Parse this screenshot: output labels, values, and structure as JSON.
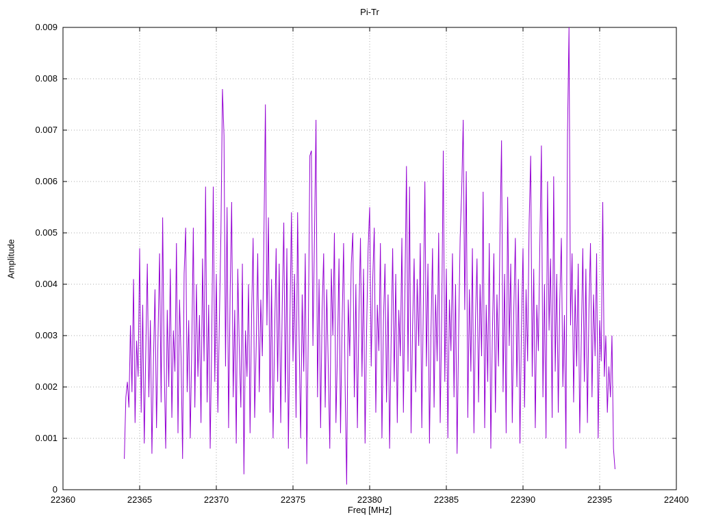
{
  "page": {
    "background": "#ffffff"
  },
  "chart_data": {
    "type": "line",
    "title": "Pi-Tr",
    "xlabel": "Freq [MHz]",
    "ylabel": "Amplitude",
    "xlim": [
      22360,
      22400
    ],
    "ylim": [
      0,
      0.009
    ],
    "grid": true,
    "legend": "none",
    "line_color": "#9400d3",
    "x_ticks": [
      22360,
      22365,
      22370,
      22375,
      22380,
      22385,
      22390,
      22395,
      22400
    ],
    "x_tick_labels": [
      "22360",
      "22365",
      "22370",
      "22375",
      "22380",
      "22385",
      "22390",
      "22395",
      "22400"
    ],
    "y_ticks": [
      0,
      0.001,
      0.002,
      0.003,
      0.004,
      0.005,
      0.006,
      0.007,
      0.008,
      0.009
    ],
    "y_tick_labels": [
      "0",
      "0.001",
      "0.002",
      "0.003",
      "0.004",
      "0.005",
      "0.006",
      "0.007",
      "0.008",
      "0.009"
    ],
    "x_start": 22364.0,
    "x_step": 0.1,
    "values": [
      0.0006,
      0.0018,
      0.0021,
      0.0016,
      0.0032,
      0.0019,
      0.0041,
      0.0013,
      0.0029,
      0.0022,
      0.0047,
      0.0015,
      0.0036,
      0.0009,
      0.0027,
      0.0044,
      0.0018,
      0.0033,
      0.0007,
      0.0025,
      0.0039,
      0.0012,
      0.003,
      0.0046,
      0.0017,
      0.0053,
      0.0024,
      0.0008,
      0.0035,
      0.002,
      0.0043,
      0.0014,
      0.0031,
      0.0023,
      0.0048,
      0.0011,
      0.0037,
      0.0026,
      0.0006,
      0.0042,
      0.0051,
      0.0019,
      0.0033,
      0.001,
      0.0028,
      0.0051,
      0.0016,
      0.004,
      0.0022,
      0.0034,
      0.0013,
      0.0045,
      0.0025,
      0.0059,
      0.0017,
      0.0036,
      0.0008,
      0.0029,
      0.0059,
      0.0021,
      0.0042,
      0.0015,
      0.0033,
      0.005,
      0.0078,
      0.0069,
      0.0024,
      0.0055,
      0.0012,
      0.0038,
      0.0056,
      0.0018,
      0.0035,
      0.0009,
      0.0043,
      0.0027,
      0.0016,
      0.0044,
      0.0003,
      0.0031,
      0.0022,
      0.004,
      0.0011,
      0.0034,
      0.0049,
      0.0014,
      0.0028,
      0.0046,
      0.0019,
      0.0037,
      0.0026,
      0.0048,
      0.0075,
      0.0032,
      0.0053,
      0.0015,
      0.0041,
      0.001,
      0.003,
      0.0047,
      0.0021,
      0.0044,
      0.0013,
      0.0036,
      0.0052,
      0.0017,
      0.0047,
      0.0008,
      0.0033,
      0.0054,
      0.0025,
      0.0042,
      0.0014,
      0.0054,
      0.0029,
      0.001,
      0.0038,
      0.0023,
      0.0046,
      0.0005,
      0.0031,
      0.0065,
      0.0066,
      0.0028,
      0.0049,
      0.0072,
      0.0018,
      0.0041,
      0.0012,
      0.0035,
      0.0046,
      0.0016,
      0.0039,
      0.0024,
      0.0008,
      0.0043,
      0.003,
      0.005,
      0.0013,
      0.0027,
      0.0045,
      0.0011,
      0.0032,
      0.0048,
      0.002,
      0.0001,
      0.0037,
      0.0026,
      0.0044,
      0.005,
      0.0018,
      0.004,
      0.0012,
      0.0034,
      0.0049,
      0.0022,
      0.0043,
      0.0009,
      0.0031,
      0.0047,
      0.0055,
      0.0024,
      0.0041,
      0.0051,
      0.0015,
      0.0036,
      0.0027,
      0.0048,
      0.001,
      0.0033,
      0.0044,
      0.0017,
      0.0038,
      0.0008,
      0.0029,
      0.0047,
      0.0021,
      0.0042,
      0.0013,
      0.0035,
      0.0026,
      0.0049,
      0.0015,
      0.0039,
      0.0063,
      0.0023,
      0.0059,
      0.0011,
      0.0032,
      0.0045,
      0.0019,
      0.0041,
      0.0028,
      0.0048,
      0.0012,
      0.0036,
      0.006,
      0.0024,
      0.0044,
      0.0009,
      0.0031,
      0.0047,
      0.0016,
      0.0038,
      0.0025,
      0.005,
      0.0013,
      0.0034,
      0.0066,
      0.0021,
      0.0043,
      0.001,
      0.0037,
      0.0027,
      0.0046,
      0.0018,
      0.004,
      0.0007,
      0.003,
      0.0049,
      0.0058,
      0.0072,
      0.0035,
      0.0062,
      0.0014,
      0.0039,
      0.0023,
      0.0047,
      0.0011,
      0.0033,
      0.0045,
      0.0017,
      0.004,
      0.0026,
      0.0058,
      0.0012,
      0.0036,
      0.0021,
      0.0048,
      0.0008,
      0.003,
      0.0046,
      0.0015,
      0.0038,
      0.0024,
      0.005,
      0.0068,
      0.0019,
      0.0042,
      0.0011,
      0.0057,
      0.0028,
      0.0044,
      0.0013,
      0.0035,
      0.0049,
      0.002,
      0.0041,
      0.0009,
      0.0032,
      0.0047,
      0.0016,
      0.0039,
      0.0025,
      0.0052,
      0.0065,
      0.0022,
      0.0043,
      0.0012,
      0.0036,
      0.0027,
      0.0048,
      0.0067,
      0.0018,
      0.004,
      0.001,
      0.006,
      0.0031,
      0.0045,
      0.0014,
      0.0061,
      0.0023,
      0.0042,
      0.0015,
      0.0037,
      0.0049,
      0.002,
      0.0034,
      0.0008,
      0.0069,
      0.009,
      0.0032,
      0.0046,
      0.0017,
      0.0039,
      0.0024,
      0.0044,
      0.0011,
      0.0029,
      0.0047,
      0.0021,
      0.0043,
      0.0013,
      0.0035,
      0.0048,
      0.0018,
      0.0038,
      0.0026,
      0.0046,
      0.001,
      0.0033,
      0.0025,
      0.0056,
      0.0022,
      0.003,
      0.0015,
      0.0024,
      0.0018,
      0.003,
      0.0008,
      0.0004
    ]
  }
}
